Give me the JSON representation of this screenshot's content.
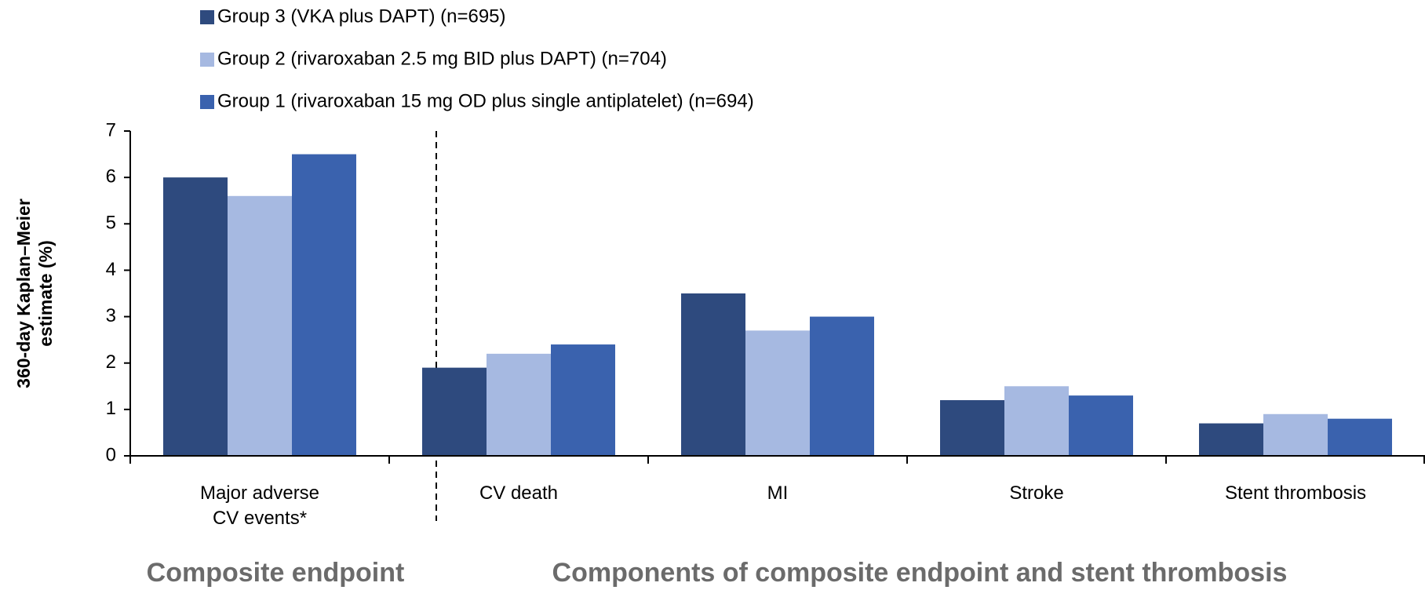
{
  "chart_data": {
    "type": "bar",
    "y_label": "360-day Kaplan–Meier\nestimate (%)",
    "categories": [
      "Major adverse\nCV events*",
      "CV death",
      "MI",
      "Stroke",
      "Stent thrombosis"
    ],
    "series": [
      {
        "name": "Group 3 (VKA plus DAPT) (n=695)",
        "color": "#2e4a7e",
        "values": [
          6.0,
          1.9,
          3.5,
          1.2,
          0.7
        ]
      },
      {
        "name": "Group 2 (rivaroxaban 2.5 mg BID plus DAPT) (n=704)",
        "color": "#a6b9e1",
        "values": [
          5.6,
          2.2,
          2.7,
          1.5,
          0.9
        ]
      },
      {
        "name": "Group 1 (rivaroxaban 15 mg OD plus single antiplatelet) (n=694)",
        "color": "#3a62ae",
        "values": [
          6.5,
          2.4,
          3.0,
          1.3,
          0.8
        ]
      }
    ],
    "ylim": [
      0,
      7
    ],
    "yticks": [
      0,
      1,
      2,
      3,
      4,
      5,
      6,
      7
    ],
    "annotations": [
      "Composite endpoint",
      "Components of composite endpoint and stent thrombosis"
    ]
  }
}
